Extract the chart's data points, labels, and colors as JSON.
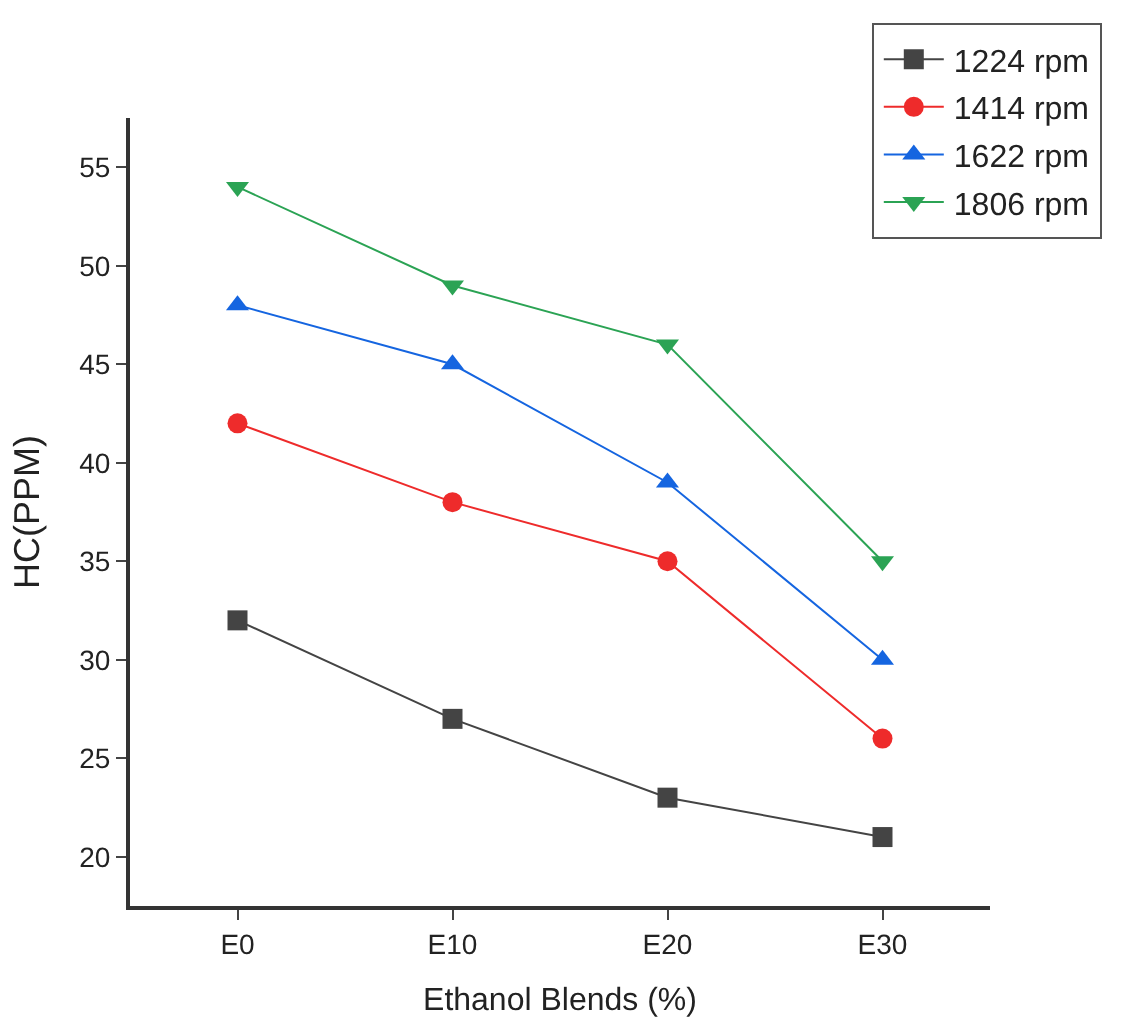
{
  "chart_data": {
    "type": "line",
    "xlabel": "Ethanol Blends (%)",
    "ylabel": "HC(PPM)",
    "categories": [
      "E0",
      "E10",
      "E20",
      "E30"
    ],
    "series": [
      {
        "name": "1224 rpm",
        "color": "#444444",
        "marker": "square",
        "values": [
          32,
          27,
          23,
          21
        ]
      },
      {
        "name": "1414 rpm",
        "color": "#ee2b2b",
        "marker": "circle",
        "values": [
          42,
          38,
          35,
          26
        ]
      },
      {
        "name": "1622 rpm",
        "color": "#1565e0",
        "marker": "triangle",
        "values": [
          48,
          45,
          39,
          30
        ]
      },
      {
        "name": "1806 rpm",
        "color": "#2ba354",
        "marker": "triangle-down",
        "values": [
          54,
          49,
          46,
          35
        ]
      }
    ],
    "ylim": [
      17.5,
      57.5
    ],
    "yticks": [
      20,
      25,
      30,
      35,
      40,
      45,
      50,
      55
    ],
    "legend": "top right",
    "line_style": "solid"
  }
}
